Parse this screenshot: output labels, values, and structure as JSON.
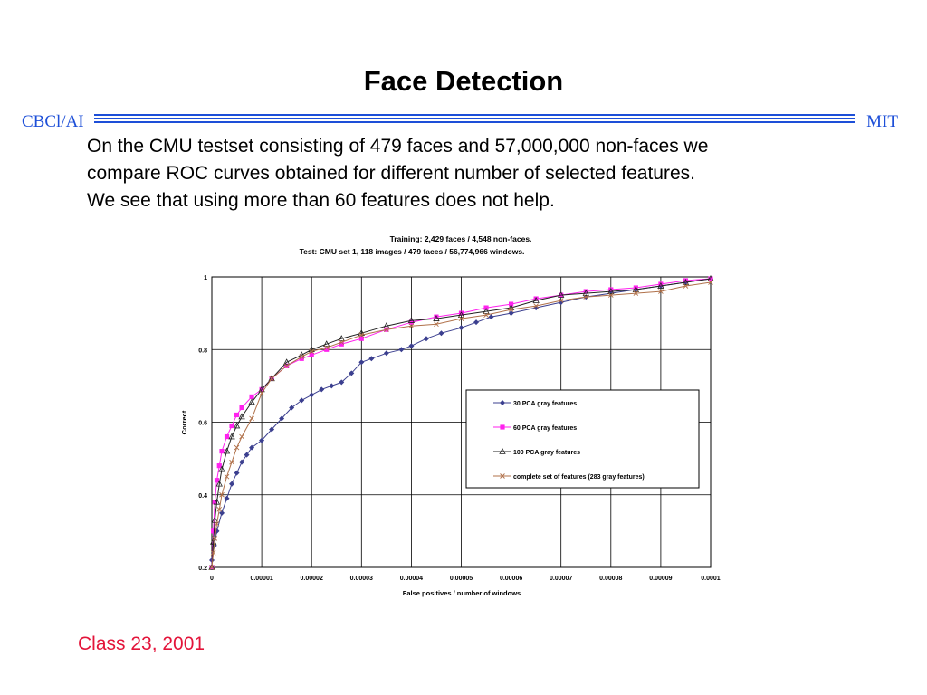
{
  "slide": {
    "title": "Face Detection",
    "left_label": "CBCl/AI",
    "right_label": "MIT",
    "body_lines": [
      "On the CMU testset consisting of 479 faces and 57,000,000 non-faces we",
      "compare ROC curves obtained for different number of selected features.",
      "We see that using more than 60 features does not help."
    ],
    "footer": "Class 23,  2001",
    "accent_color": "#1d4fd8",
    "footer_color": "#e3143a"
  },
  "chart_data": {
    "type": "line",
    "title": "Training: 2,429 faces / 4,548 non-faces.",
    "subtitle": "Test: CMU set 1, 118 images / 479 faces / 56,774,966 windows.",
    "xlabel": "False positives / number of windows",
    "ylabel": "Correct",
    "xlim": [
      0,
      0.0001
    ],
    "ylim": [
      0.2,
      1
    ],
    "x_ticks": [
      "0",
      "0.00001",
      "0.00002",
      "0.00003",
      "0.00004",
      "0.00005",
      "0.00006",
      "0.00007",
      "0.00008",
      "0.00009",
      "0.0001"
    ],
    "y_ticks": [
      "0.2",
      "0.4",
      "0.6",
      "0.8",
      "1"
    ],
    "grid": true,
    "legend_position": "inside-right",
    "series": [
      {
        "name": "30 PCA gray features",
        "color": "#3b3f8f",
        "marker": "diamond",
        "x": [
          0,
          5e-07,
          1e-06,
          2e-06,
          3e-06,
          4e-06,
          5e-06,
          6e-06,
          7e-06,
          8e-06,
          1e-05,
          1.2e-05,
          1.4e-05,
          1.6e-05,
          1.8e-05,
          2e-05,
          2.2e-05,
          2.4e-05,
          2.6e-05,
          2.8e-05,
          3e-05,
          3.2e-05,
          3.5e-05,
          3.8e-05,
          4e-05,
          4.3e-05,
          4.6e-05,
          5e-05,
          5.3e-05,
          5.6e-05,
          6e-05,
          6.5e-05,
          7e-05,
          7.5e-05,
          8e-05,
          8.5e-05,
          9e-05,
          9.5e-05,
          0.0001
        ],
        "values": [
          0.22,
          0.26,
          0.3,
          0.35,
          0.39,
          0.43,
          0.46,
          0.49,
          0.51,
          0.53,
          0.55,
          0.58,
          0.61,
          0.64,
          0.66,
          0.675,
          0.69,
          0.7,
          0.71,
          0.735,
          0.765,
          0.775,
          0.79,
          0.8,
          0.81,
          0.83,
          0.845,
          0.86,
          0.875,
          0.89,
          0.9,
          0.915,
          0.93,
          0.945,
          0.955,
          0.965,
          0.975,
          0.985,
          0.995
        ]
      },
      {
        "name": "60 PCA gray features",
        "color": "#ff22ee",
        "marker": "square",
        "x": [
          0,
          3e-07,
          6e-07,
          1e-06,
          1.5e-06,
          2e-06,
          3e-06,
          4e-06,
          5e-06,
          6e-06,
          8e-06,
          1e-05,
          1.2e-05,
          1.5e-05,
          1.8e-05,
          2e-05,
          2.3e-05,
          2.6e-05,
          3e-05,
          3.5e-05,
          4e-05,
          4.5e-05,
          5e-05,
          5.5e-05,
          6e-05,
          6.5e-05,
          7e-05,
          7.5e-05,
          8e-05,
          8.5e-05,
          9e-05,
          9.5e-05,
          0.0001
        ],
        "values": [
          0.2,
          0.3,
          0.38,
          0.44,
          0.48,
          0.52,
          0.56,
          0.59,
          0.62,
          0.64,
          0.67,
          0.69,
          0.72,
          0.755,
          0.775,
          0.785,
          0.8,
          0.815,
          0.83,
          0.855,
          0.875,
          0.89,
          0.9,
          0.915,
          0.925,
          0.94,
          0.95,
          0.96,
          0.965,
          0.97,
          0.98,
          0.99,
          0.995
        ]
      },
      {
        "name": "100 PCA gray features",
        "color": "#222222",
        "marker": "triangle",
        "x": [
          0,
          3e-07,
          6e-07,
          1e-06,
          1.5e-06,
          2e-06,
          3e-06,
          4e-06,
          5e-06,
          6e-06,
          8e-06,
          1e-05,
          1.2e-05,
          1.5e-05,
          1.8e-05,
          2e-05,
          2.3e-05,
          2.6e-05,
          3e-05,
          3.5e-05,
          4e-05,
          4.5e-05,
          5e-05,
          5.5e-05,
          6e-05,
          6.5e-05,
          7e-05,
          7.5e-05,
          8e-05,
          8.5e-05,
          9e-05,
          9.5e-05,
          0.0001
        ],
        "values": [
          0.2,
          0.27,
          0.33,
          0.38,
          0.43,
          0.47,
          0.52,
          0.56,
          0.59,
          0.615,
          0.655,
          0.69,
          0.72,
          0.765,
          0.785,
          0.8,
          0.815,
          0.83,
          0.845,
          0.865,
          0.88,
          0.885,
          0.895,
          0.905,
          0.915,
          0.935,
          0.95,
          0.955,
          0.96,
          0.965,
          0.975,
          0.985,
          0.995
        ]
      },
      {
        "name": "complete set of features (283 gray features)",
        "color": "#b0714a",
        "marker": "x",
        "x": [
          0,
          3e-07,
          6e-07,
          1e-06,
          1.5e-06,
          2e-06,
          3e-06,
          4e-06,
          5e-06,
          6e-06,
          8e-06,
          1e-05,
          1.2e-05,
          1.5e-05,
          1.8e-05,
          2e-05,
          2.3e-05,
          2.6e-05,
          3e-05,
          3.5e-05,
          4e-05,
          4.5e-05,
          5e-05,
          5.5e-05,
          6e-05,
          6.5e-05,
          7e-05,
          7.5e-05,
          8e-05,
          8.5e-05,
          9e-05,
          9.5e-05,
          0.0001
        ],
        "values": [
          0.2,
          0.24,
          0.28,
          0.32,
          0.36,
          0.4,
          0.45,
          0.49,
          0.53,
          0.56,
          0.61,
          0.68,
          0.72,
          0.755,
          0.78,
          0.795,
          0.805,
          0.82,
          0.84,
          0.855,
          0.865,
          0.87,
          0.885,
          0.895,
          0.91,
          0.92,
          0.935,
          0.945,
          0.95,
          0.955,
          0.96,
          0.975,
          0.985
        ]
      }
    ]
  }
}
